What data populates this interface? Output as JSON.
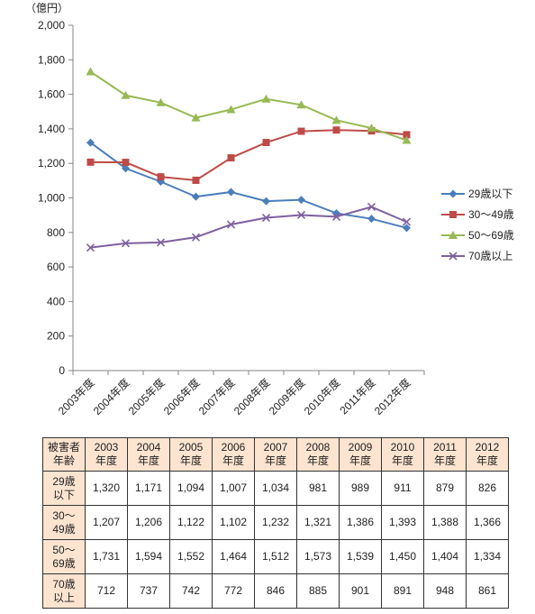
{
  "chart_data": {
    "type": "line",
    "unit_label": "（億円）",
    "categories": [
      "2003年度",
      "2004年度",
      "2005年度",
      "2006年度",
      "2007年度",
      "2008年度",
      "2009年度",
      "2010年度",
      "2011年度",
      "2012年度"
    ],
    "ylim": [
      0,
      2000
    ],
    "yticks": [
      "0",
      "200",
      "400",
      "600",
      "800",
      "1,000",
      "1,200",
      "1,400",
      "1,600",
      "1,800",
      "2,000"
    ],
    "grid": false,
    "legend_position": "right",
    "series": [
      {
        "name": "29歳以下",
        "color": "#4a7ebb",
        "marker": "diamond",
        "values": [
          1320,
          1171,
          1094,
          1007,
          1034,
          981,
          989,
          911,
          879,
          826
        ]
      },
      {
        "name": "30～49歳",
        "color": "#be4b48",
        "marker": "square",
        "values": [
          1207,
          1206,
          1122,
          1102,
          1232,
          1321,
          1386,
          1393,
          1388,
          1366
        ]
      },
      {
        "name": "50～69歳",
        "color": "#98b954",
        "marker": "triangle",
        "values": [
          1731,
          1594,
          1552,
          1464,
          1512,
          1573,
          1539,
          1450,
          1404,
          1334
        ]
      },
      {
        "name": "70歳以上",
        "color": "#7d60a0",
        "marker": "x",
        "values": [
          712,
          737,
          742,
          772,
          846,
          885,
          901,
          891,
          948,
          861
        ]
      }
    ]
  },
  "table": {
    "corner": [
      "被害者",
      "年齢"
    ],
    "headers": [
      [
        "2003",
        "年度"
      ],
      [
        "2004",
        "年度"
      ],
      [
        "2005",
        "年度"
      ],
      [
        "2006",
        "年度"
      ],
      [
        "2007",
        "年度"
      ],
      [
        "2008",
        "年度"
      ],
      [
        "2009",
        "年度"
      ],
      [
        "2010",
        "年度"
      ],
      [
        "2011",
        "年度"
      ],
      [
        "2012",
        "年度"
      ]
    ],
    "rows": [
      {
        "label": [
          "29歳",
          "以下"
        ],
        "cells": [
          "1,320",
          "1,171",
          "1,094",
          "1,007",
          "1,034",
          "981",
          "989",
          "911",
          "879",
          "826"
        ]
      },
      {
        "label": [
          "30～",
          "49歳"
        ],
        "cells": [
          "1,207",
          "1,206",
          "1,122",
          "1,102",
          "1,232",
          "1,321",
          "1,386",
          "1,393",
          "1,388",
          "1,366"
        ]
      },
      {
        "label": [
          "50～",
          "69歳"
        ],
        "cells": [
          "1,731",
          "1,594",
          "1,552",
          "1,464",
          "1,512",
          "1,573",
          "1,539",
          "1,450",
          "1,404",
          "1,334"
        ]
      },
      {
        "label": [
          "70歳",
          "以上"
        ],
        "cells": [
          "712",
          "737",
          "742",
          "772",
          "846",
          "885",
          "901",
          "891",
          "948",
          "861"
        ]
      }
    ]
  }
}
